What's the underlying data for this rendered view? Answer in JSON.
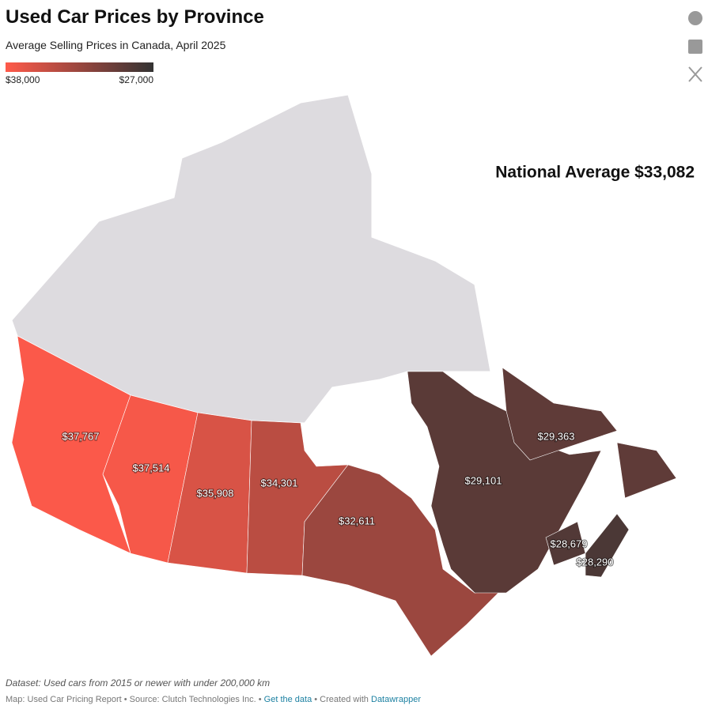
{
  "header": {
    "title": "Used Car Prices by Province",
    "subtitle": "Average Selling Prices in Canada, April 2025"
  },
  "legend": {
    "min": {
      "value": 38000,
      "label": "$38,000"
    },
    "max": {
      "value": 27000,
      "label": "$27,000"
    },
    "colors": [
      "#ff5a4a",
      "#333333"
    ]
  },
  "annotation": "National Average $33,082",
  "regions": [
    {
      "value": 37767,
      "label": "$37,767"
    },
    {
      "value": 37514,
      "label": "$37,514"
    },
    {
      "value": 35908,
      "label": "$35,908"
    },
    {
      "value": 34301,
      "label": "$34,301"
    },
    {
      "value": 32611,
      "label": "$32,611"
    },
    {
      "value": 29101,
      "label": "$29,101"
    },
    {
      "value": 29363,
      "label": "$29,363"
    },
    {
      "value": 28679,
      "label": "$28,679"
    },
    {
      "value": 28290,
      "label": "$28,290"
    }
  ],
  "footer": {
    "note": "Dataset: Used cars from 2015 or newer with under 200,000 km",
    "source": "Map: Used Car Pricing Report • Source: Clutch Technologies Inc. •",
    "link_data": "Get the data",
    "created": "• Created with",
    "link_tool": "Datawrapper"
  }
}
